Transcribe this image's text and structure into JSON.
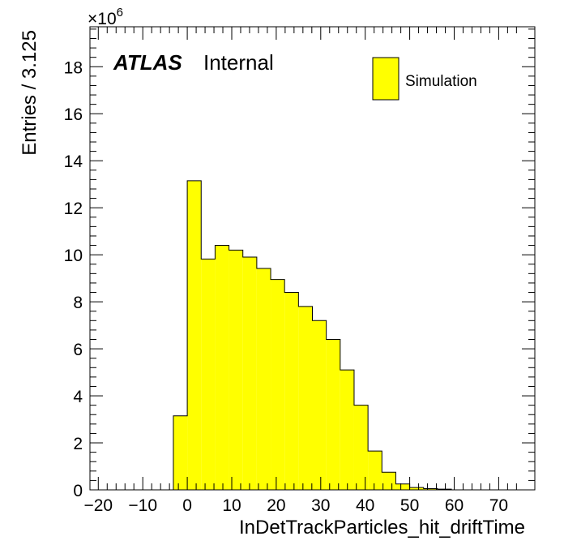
{
  "chart_data": {
    "type": "bar",
    "xlabel": "InDetTrackParticles_hit_driftTime",
    "ylabel": "Entries / 3.125",
    "y_multiplier": {
      "base": "×10",
      "exponent": "6"
    },
    "xlim": [
      -21.875,
      78.125
    ],
    "ylim": [
      0,
      19.7
    ],
    "bin_width": 3.125,
    "x_ticks": [
      -20,
      -10,
      0,
      10,
      20,
      30,
      40,
      50,
      60,
      70
    ],
    "x_tick_labels": [
      "−20",
      "−10",
      "0",
      "10",
      "20",
      "30",
      "40",
      "50",
      "60",
      "70"
    ],
    "y_ticks": [
      0,
      2,
      4,
      6,
      8,
      10,
      12,
      14,
      16,
      18
    ],
    "y_tick_labels": [
      "0",
      "2",
      "4",
      "6",
      "8",
      "10",
      "12",
      "14",
      "16",
      "18"
    ],
    "bin_edges": [
      -3.125,
      0,
      3.125,
      6.25,
      9.375,
      12.5,
      15.625,
      18.75,
      21.875,
      25,
      28.125,
      31.25,
      34.375,
      37.5,
      40.625,
      43.75,
      46.875,
      50,
      53.125,
      56.25,
      59.375
    ],
    "values": [
      3.15,
      13.15,
      9.82,
      10.4,
      10.2,
      9.9,
      9.42,
      8.95,
      8.4,
      7.8,
      7.2,
      6.4,
      5.1,
      3.6,
      1.65,
      0.75,
      0.25,
      0.1,
      0.05,
      0.03
    ],
    "series": [
      {
        "name": "Simulation",
        "color": "#ffff00",
        "edge_color": "#000000"
      }
    ],
    "grid": false,
    "legend_position": "top-right",
    "annotation": {
      "atlas": "ATLAS",
      "label": "Internal"
    }
  }
}
